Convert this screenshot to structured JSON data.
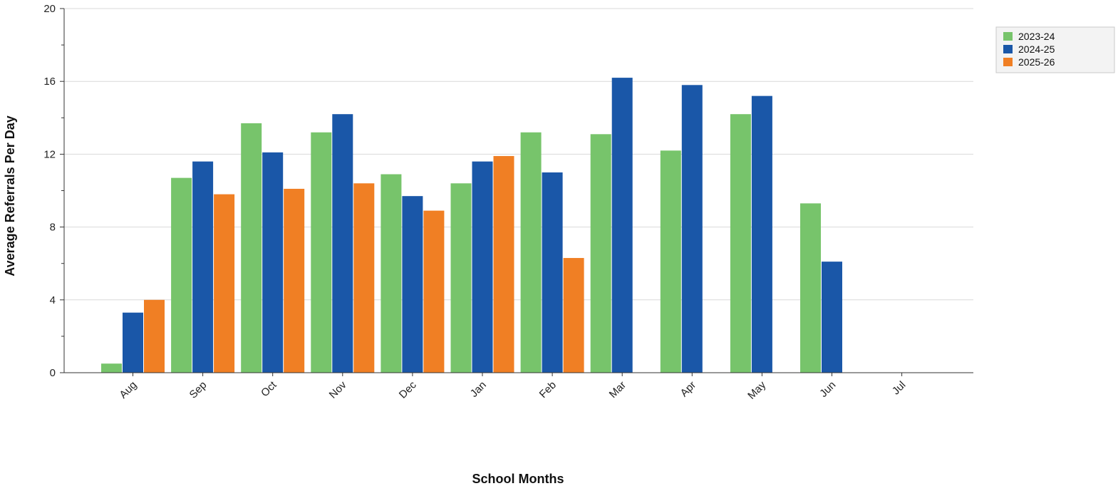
{
  "chart_data": {
    "type": "bar",
    "xlabel": "School Months",
    "ylabel": "Average Referrals Per Day",
    "ylim": [
      0,
      20
    ],
    "yticks": [
      0,
      4,
      8,
      12,
      16,
      20
    ],
    "grid": true,
    "legend_position": "top-right",
    "categories": [
      "Aug",
      "Sep",
      "Oct",
      "Nov",
      "Dec",
      "Jan",
      "Feb",
      "Mar",
      "Apr",
      "May",
      "Jun",
      "Jul"
    ],
    "series": [
      {
        "name": "2023-24",
        "color": "#77c46b",
        "values": [
          0.5,
          10.7,
          13.7,
          13.2,
          10.9,
          10.4,
          13.2,
          13.1,
          12.2,
          14.2,
          9.3,
          null
        ]
      },
      {
        "name": "2024-25",
        "color": "#1a57a8",
        "values": [
          3.3,
          11.6,
          12.1,
          14.2,
          9.7,
          11.6,
          11.0,
          16.2,
          15.8,
          15.2,
          6.1,
          null
        ]
      },
      {
        "name": "2025-26",
        "color": "#f07f24",
        "values": [
          4.0,
          9.8,
          10.1,
          10.4,
          8.9,
          11.9,
          6.3,
          null,
          null,
          null,
          null,
          null
        ]
      }
    ]
  }
}
